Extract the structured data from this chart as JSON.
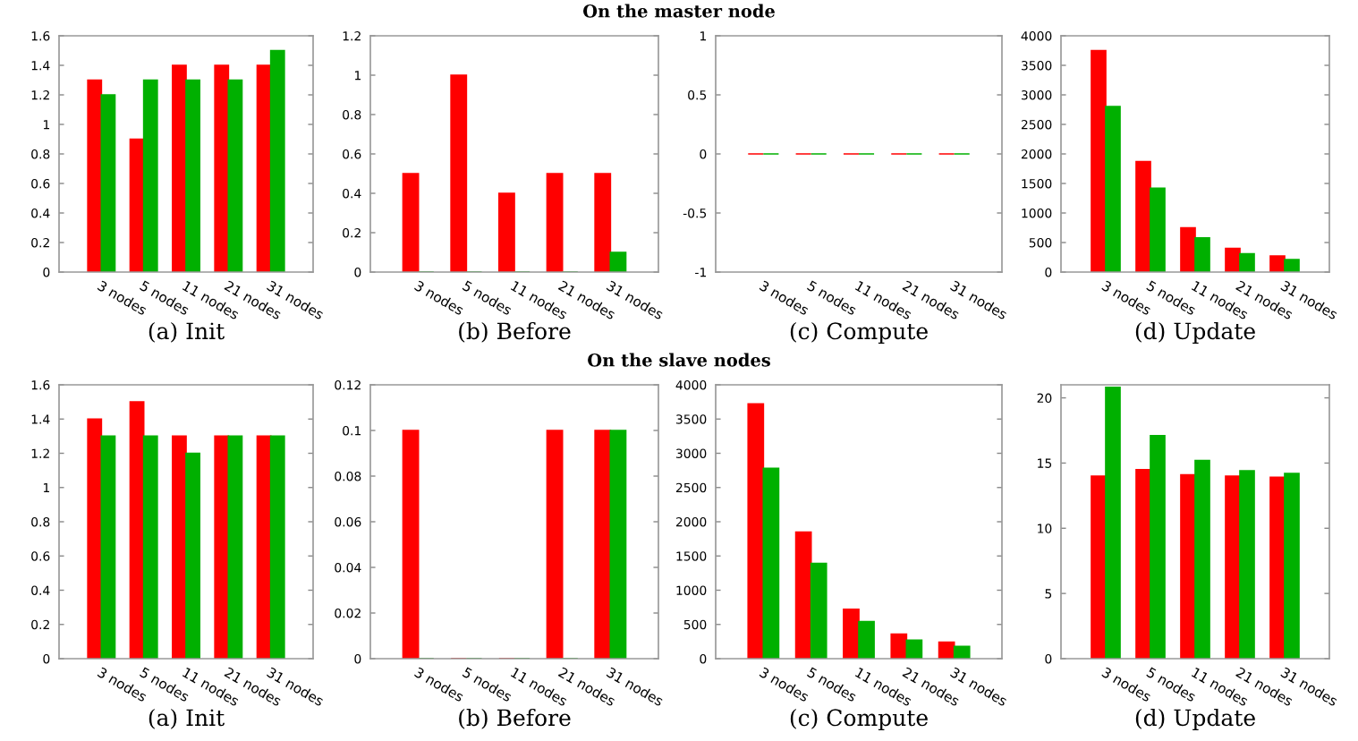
{
  "chart_data": [
    {
      "type": "bar",
      "title": "(a) Init",
      "annotations": [
        "On the master node"
      ],
      "categories": [
        "3 nodes",
        "5 nodes",
        "11 nodes",
        "21 nodes",
        "31 nodes"
      ],
      "ylim": [
        0,
        1.6
      ],
      "yticks": [
        0,
        0.2,
        0.4,
        0.6,
        0.8,
        1,
        1.2,
        1.4,
        1.6
      ],
      "series": [
        {
          "color": "#ff0000",
          "values": [
            1.3,
            0.9,
            1.4,
            1.4,
            1.4
          ]
        },
        {
          "color": "#00b000",
          "values": [
            1.2,
            1.3,
            1.3,
            1.3,
            1.5
          ]
        }
      ]
    },
    {
      "type": "bar",
      "title": "(b) Before",
      "categories": [
        "3 nodes",
        "5 nodes",
        "11 nodes",
        "21 nodes",
        "31 nodes"
      ],
      "ylim": [
        0,
        1.2
      ],
      "yticks": [
        0,
        0.2,
        0.4,
        0.6,
        0.8,
        1,
        1.2
      ],
      "series": [
        {
          "color": "#ff0000",
          "values": [
            0.5,
            1,
            0.4,
            0.5,
            0.5
          ]
        },
        {
          "color": "#00b000",
          "values": [
            0,
            0,
            0,
            0,
            0.1
          ]
        }
      ]
    },
    {
      "type": "bar",
      "title": "(c) Compute",
      "categories": [
        "3 nodes",
        "5 nodes",
        "11 nodes",
        "21 nodes",
        "31 nodes"
      ],
      "ylim": [
        -1,
        1
      ],
      "yticks": [
        -1,
        -0.5,
        0,
        0.5,
        1
      ],
      "series": [
        {
          "color": "#ff0000",
          "values": [
            0,
            0,
            0,
            0,
            0
          ]
        },
        {
          "color": "#00b000",
          "values": [
            0,
            0,
            0,
            0,
            0
          ]
        }
      ]
    },
    {
      "type": "bar",
      "title": "(d) Update",
      "categories": [
        "3 nodes",
        "5 nodes",
        "11 nodes",
        "21 nodes",
        "31 nodes"
      ],
      "ylim": [
        0,
        4000
      ],
      "yticks": [
        0,
        500,
        1000,
        1500,
        2000,
        2500,
        3000,
        3500,
        4000
      ],
      "series": [
        {
          "color": "#ff0000",
          "values": [
            3750,
            1870,
            750,
            400,
            270
          ]
        },
        {
          "color": "#00b000",
          "values": [
            2800,
            1420,
            580,
            310,
            210
          ]
        }
      ]
    },
    {
      "type": "bar",
      "title": "(a) Init",
      "annotations": [
        "On the slave nodes"
      ],
      "categories": [
        "3 nodes",
        "5 nodes",
        "11 nodes",
        "21 nodes",
        "31 nodes"
      ],
      "ylim": [
        0,
        1.6
      ],
      "yticks": [
        0,
        0.2,
        0.4,
        0.6,
        0.8,
        1,
        1.2,
        1.4,
        1.6
      ],
      "series": [
        {
          "color": "#ff0000",
          "values": [
            1.4,
            1.5,
            1.3,
            1.3,
            1.3
          ]
        },
        {
          "color": "#00b000",
          "values": [
            1.3,
            1.3,
            1.2,
            1.3,
            1.3
          ]
        }
      ]
    },
    {
      "type": "bar",
      "title": "(b) Before",
      "categories": [
        "3 nodes",
        "5 nodes",
        "11 nodes",
        "21 nodes",
        "31 nodes"
      ],
      "ylim": [
        0,
        0.12
      ],
      "yticks": [
        0,
        0.02,
        0.04,
        0.06,
        0.08,
        0.1,
        0.12
      ],
      "series": [
        {
          "color": "#ff0000",
          "values": [
            0.1,
            0,
            0,
            0.1,
            0.1
          ]
        },
        {
          "color": "#00b000",
          "values": [
            0,
            0,
            0,
            0,
            0.1
          ]
        }
      ]
    },
    {
      "type": "bar",
      "title": "(c) Compute",
      "categories": [
        "3 nodes",
        "5 nodes",
        "11 nodes",
        "21 nodes",
        "31 nodes"
      ],
      "ylim": [
        0,
        4000
      ],
      "yticks": [
        0,
        500,
        1000,
        1500,
        2000,
        2500,
        3000,
        3500,
        4000
      ],
      "series": [
        {
          "color": "#ff0000",
          "values": [
            3720,
            1850,
            720,
            360,
            240
          ]
        },
        {
          "color": "#00b000",
          "values": [
            2780,
            1390,
            540,
            270,
            180
          ]
        }
      ]
    },
    {
      "type": "bar",
      "title": "(d) Update",
      "categories": [
        "3 nodes",
        "5 nodes",
        "11 nodes",
        "21 nodes",
        "31 nodes"
      ],
      "ylim": [
        0,
        21
      ],
      "yticks": [
        0,
        5,
        10,
        15,
        20
      ],
      "series": [
        {
          "color": "#ff0000",
          "values": [
            14,
            14.5,
            14.1,
            14,
            13.9
          ]
        },
        {
          "color": "#00b000",
          "values": [
            20.8,
            17.1,
            15.2,
            14.4,
            14.2
          ]
        }
      ]
    }
  ]
}
